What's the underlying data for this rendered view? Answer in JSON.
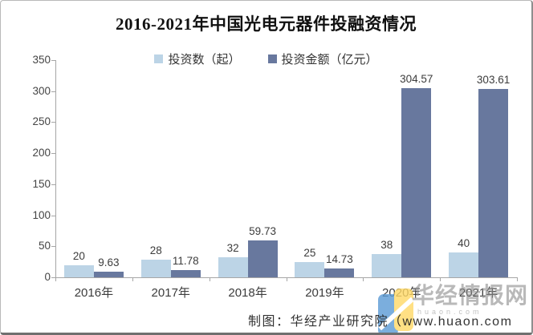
{
  "chart_data": {
    "type": "bar",
    "title": "2016-2021年中国光电元器件投融资情况",
    "categories": [
      "2016年",
      "2017年",
      "2018年",
      "2019年",
      "2020年",
      "2021年"
    ],
    "series": [
      {
        "name": "投资数（起）",
        "color": "#BCD4E6",
        "values": [
          20,
          28,
          32,
          25,
          38,
          40
        ]
      },
      {
        "name": "投资金额（亿元）",
        "color": "#68789E",
        "values": [
          9.63,
          11.78,
          59.73,
          14.73,
          304.57,
          303.61
        ]
      }
    ],
    "ylim": [
      0,
      350
    ],
    "yticks": [
      0,
      50,
      100,
      150,
      200,
      250,
      300,
      350
    ],
    "xlabel": "",
    "ylabel": "",
    "grid": false,
    "legend_position": "top-center",
    "axis_color": "#a6a6a6",
    "label_color": "#3c3c3c"
  },
  "footer": {
    "credit": "制图：华经产业研究院（www.huaon.com"
  },
  "watermark": {
    "brand": "华经情报网",
    "domain": "huaon.com",
    "logo_blue": "#5B9BD5",
    "logo_yellow": "#FFD966"
  }
}
